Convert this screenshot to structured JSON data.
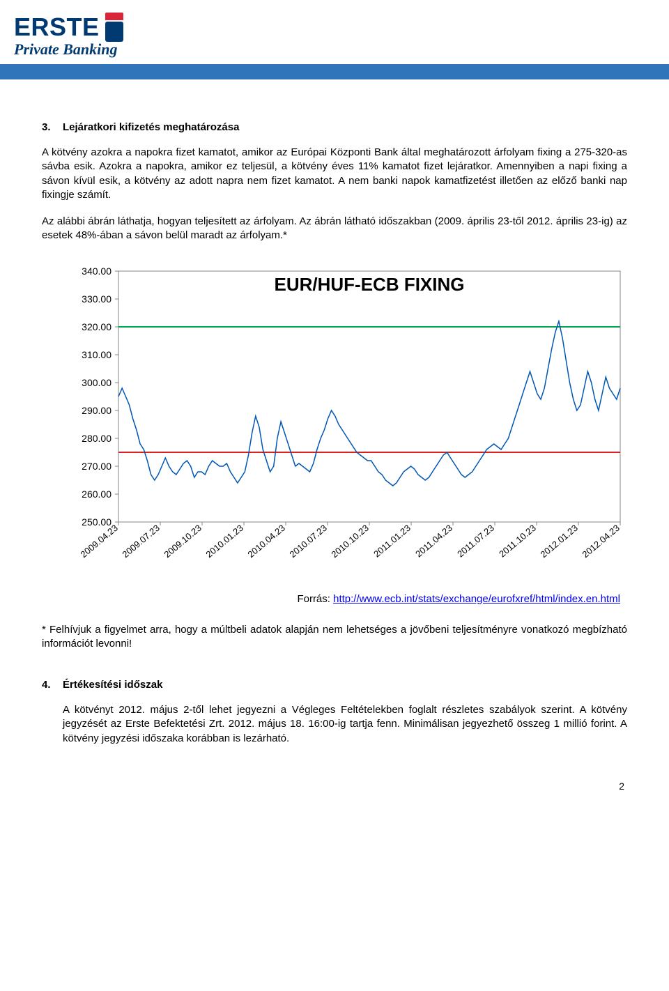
{
  "logo": {
    "brand": "ERSTE",
    "sub": "Private Banking"
  },
  "section3": {
    "num": "3.",
    "title": "Lejáratkori kifizetés meghatározása",
    "p1": "A kötvény azokra a napokra fizet kamatot, amikor az Európai Központi Bank által meghatározott árfolyam fixing a 275-320-as sávba esik. Azokra a napokra, amikor ez teljesül, a kötvény éves 11% kamatot fizet lejáratkor. Amennyiben a napi fixing a sávon kívül esik, a kötvény az adott napra nem fizet kamatot. A nem banki napok kamatfizetést illetően az előző banki nap fixingje számít.",
    "p2": "Az alábbi ábrán láthatja, hogyan teljesített az árfolyam. Az ábrán látható időszakban (2009. április 23-től 2012. április 23-ig) az esetek 48%-ában a sávon belül maradt az árfolyam.*"
  },
  "chart": {
    "type": "line",
    "title": "EUR/HUF-ECB FIXING",
    "title_fontsize": 26,
    "background_color": "#ffffff",
    "plot_border_color": "#868686",
    "axis_text_color": "#000000",
    "line_color": "#0056b4",
    "line_width": 1.5,
    "upper_band_value": 320,
    "upper_band_color": "#00a84f",
    "lower_band_value": 275,
    "lower_band_color": "#d92020",
    "band_line_width": 2,
    "ylim": [
      250,
      340
    ],
    "ytick_step": 10,
    "y_ticks": [
      250,
      260,
      270,
      280,
      290,
      300,
      310,
      320,
      330,
      340
    ],
    "y_labels": [
      "250.00",
      "260.00",
      "270.00",
      "280.00",
      "290.00",
      "300.00",
      "310.00",
      "320.00",
      "330.00",
      "340.00"
    ],
    "x_labels": [
      "2009.04.23",
      "2009.07.23",
      "2009.10.23",
      "2010.01.23",
      "2010.04.23",
      "2010.07.23",
      "2010.10.23",
      "2011.01.23",
      "2011.04.23",
      "2011.07.23",
      "2011.10.23",
      "2012.01.23",
      "2012.04.23"
    ],
    "series": [
      295,
      298,
      295,
      292,
      287,
      283,
      278,
      276,
      272,
      267,
      265,
      267,
      270,
      273,
      270,
      268,
      267,
      269,
      271,
      272,
      270,
      266,
      268,
      268,
      267,
      270,
      272,
      271,
      270,
      270,
      271,
      268,
      266,
      264,
      266,
      268,
      274,
      282,
      288,
      284,
      276,
      272,
      268,
      270,
      280,
      286,
      282,
      278,
      274,
      270,
      271,
      270,
      269,
      268,
      271,
      276,
      280,
      283,
      287,
      290,
      288,
      285,
      283,
      281,
      279,
      277,
      275,
      274,
      273,
      272,
      272,
      270,
      268,
      267,
      265,
      264,
      263,
      264,
      266,
      268,
      269,
      270,
      269,
      267,
      266,
      265,
      266,
      268,
      270,
      272,
      274,
      275,
      273,
      271,
      269,
      267,
      266,
      267,
      268,
      270,
      272,
      274,
      276,
      277,
      278,
      277,
      276,
      278,
      280,
      284,
      288,
      292,
      296,
      300,
      304,
      300,
      296,
      294,
      298,
      305,
      312,
      318,
      322,
      316,
      308,
      300,
      294,
      290,
      292,
      298,
      304,
      300,
      294,
      290,
      296,
      302,
      298,
      296,
      294,
      298
    ]
  },
  "source": {
    "label": "Forrás: ",
    "link_text": "http://www.ecb.int/stats/exchange/eurofxref/html/index.en.html"
  },
  "footnote": "* Felhívjuk a figyelmet arra, hogy a múltbeli adatok alapján nem lehetséges a jövőbeni teljesítményre vonatkozó megbízható információt levonni!",
  "section4": {
    "num": "4.",
    "title": "Értékesítési időszak",
    "p1": "A kötvényt 2012. május 2-től lehet jegyezni a Végleges Feltételekben foglalt részletes szabályok szerint. A kötvény jegyzését az Erste Befektetési Zrt. 2012. május 18. 16:00-ig tartja fenn. Minimálisan jegyezhető összeg 1 millió forint. A kötvény jegyzési időszaka korábban is lezárható."
  },
  "page_number": "2"
}
